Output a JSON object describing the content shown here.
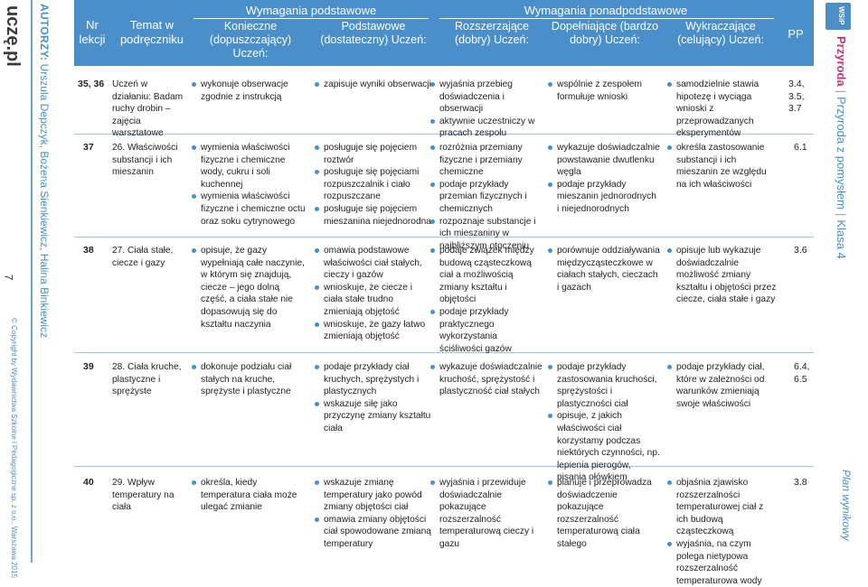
{
  "sidebar": {
    "logo_text": "uczę.pl",
    "authors_label": "AUTORZY:",
    "authors_names": "Urszula Depczyk, Bożena Sienkiewicz, Halina Binkiewicz",
    "page_number": "7",
    "copyright": "© Copyright by Wydawnictwa Szkolne i Pedagogiczne sp. z o.o., Warszawa 2015"
  },
  "rightbar": {
    "badge": "WSiP",
    "subject": "Przyroda",
    "series": "Przyroda z pomysłem",
    "grade": "Klasa 4",
    "plan": "Plan wynikowy"
  },
  "header": {
    "nr": "Nr lekcji",
    "temat": "Temat w podręczniku",
    "group_basic": "Wymagania podstawowe",
    "group_advanced": "Wymagania ponadpodstawowe",
    "koniczne": "Konieczne (dopuszczający) Uczeń:",
    "podstawowe": "Podstawowe (dostateczny) Uczeń:",
    "rozszerzajace": "Rozszerzające (dobry) Uczeń:",
    "dopelniajace": "Dopełniające (bardzo dobry) Uczeń:",
    "wykraczajace": "Wykraczające (celujący) Uczeń:",
    "pp": "PP"
  },
  "rows": [
    {
      "nr": "35, 36",
      "temat": "Uczeń w działaniu: Badam ruchy drobin – zajęcia warsztatowe",
      "koniczne": [
        "wykonuje obserwacje zgodnie z instrukcją"
      ],
      "podstawowe": [
        "zapisuje wyniki obserwacji"
      ],
      "rozszerzajace": [
        "wyjaśnia przebieg doświadczenia i obserwacji",
        "aktywnie uczestniczy w pracach zespołu"
      ],
      "dopelniajace": [
        "wspólnie z zespołem formułuje wnioski"
      ],
      "wykraczajace": [
        "samodzielnie stawia hipotezę i wyciąga wnioski z przeprowadzanych eksperymentów"
      ],
      "pp": "3.4, 3.5, 3.7"
    },
    {
      "nr": "37",
      "temat": "26. Właściwości substancji i ich mieszanin",
      "koniczne": [
        "wymienia właściwości fizyczne i chemiczne wody, cukru i soli kuchennej",
        "wymienia właściwości fizyczne i chemiczne octu oraz soku cytrynowego"
      ],
      "podstawowe": [
        "posługuje się pojęciem roztwór",
        "posługuje się pojęciami rozpuszczalnik i ciało rozpuszczane",
        "posługuje się pojęciem mieszanina niejednorodna"
      ],
      "rozszerzajace": [
        "rozróżnia przemiany fizyczne i przemiany chemiczne",
        "podaje przykłady przemian fizycznych i chemicznych",
        "rozpoznaje substancje i ich mieszaniny w najbliższym otoczeniu"
      ],
      "dopelniajace": [
        "wykazuje doświadczalnie powstawanie dwutlenku węgla",
        "podaje przykłady mieszanin jednorodnych i niejednorodnych"
      ],
      "wykraczajace": [
        "określa zastosowanie substancji i ich mieszanin ze względu na ich właściwości"
      ],
      "pp": "6.1"
    },
    {
      "nr": "38",
      "temat": "27. Ciała stałe, ciecze i gazy",
      "koniczne": [
        "opisuje, że gazy wypełniają całe naczynie, w którym się znajdują, ciecze – jego dolną część, a ciała stałe nie dopasowują się do kształtu naczynia"
      ],
      "podstawowe": [
        "omawia podstawowe właściwości ciał stałych, cieczy i gazów",
        "wnioskuje, że ciecze i ciała stałe trudno zmieniają objętość",
        "wnioskuje, że gazy łatwo zmieniają objętość"
      ],
      "rozszerzajace": [
        "podaje związek między budową cząsteczkową ciał a możliwością zmiany kształtu i objętości",
        "podaje przykłady praktycznego wykorzystania ściśliwości gazów"
      ],
      "dopelniajace": [
        "porównuje oddziaływania międzycząsteczkowe w ciałach stałych, cieczach i gazach"
      ],
      "wykraczajace": [
        "opisuje lub wykazuje doświadczalnie możliwość zmiany kształtu i objętości przez ciecze, ciała stałe i gazy"
      ],
      "pp": "3.6"
    },
    {
      "nr": "39",
      "temat": "28. Ciała kruche, plastyczne i sprężyste",
      "koniczne": [
        "dokonuje podziału ciał stałych na kruche, sprężyste i plastyczne"
      ],
      "podstawowe": [
        "podaje przykłady ciał kruchych, sprężystych i plastycznych",
        "wskazuje siłę jako przyczynę zmiany kształtu ciała"
      ],
      "rozszerzajace": [
        "wykazuje doświadczalnie kruchość, sprężystość i plastyczność ciał stałych"
      ],
      "dopelniajace": [
        "podaje przykłady zastosowania kruchości, sprężystości i plastyczności ciał",
        "opisuje, z jakich właściwości ciał korzystamy podczas niektórych czynności, np. lepienia pierogów, pisania ołówkiem"
      ],
      "wykraczajace": [
        "podaje przykłady ciał, które w zależności od warunków zmieniają swoje właściwości"
      ],
      "pp": "6.4, 6.5"
    },
    {
      "nr": "40",
      "temat": "29. Wpływ temperatury na ciała",
      "koniczne": [
        "określa, kiedy temperatura ciała może ulegać zmianie"
      ],
      "podstawowe": [
        "wskazuje zmianę temperatury jako powód zmiany objętości ciał",
        "omawia zmiany objętości ciał spowodowane zmianą temperatury"
      ],
      "rozszerzajace": [
        "wyjaśnia i przewiduje doświadczalnie pokazujące rozszerzalność temperaturową cieczy i gazu"
      ],
      "dopelniajace": [
        "planuje i przeprowadza doświadczenie pokazujące rozszerzalność temperaturową ciała stałego"
      ],
      "wykraczajace": [
        "objaśnia zjawisko rozszerzalności temperaturowej ciał z ich budową cząsteczkową",
        "wyjaśnia, na czym polega nietypowa rozszerzalność temperaturowa wody"
      ],
      "pp": "3.8"
    }
  ],
  "colors": {
    "accent": "#4a8fc9",
    "subject": "#c0357a"
  }
}
